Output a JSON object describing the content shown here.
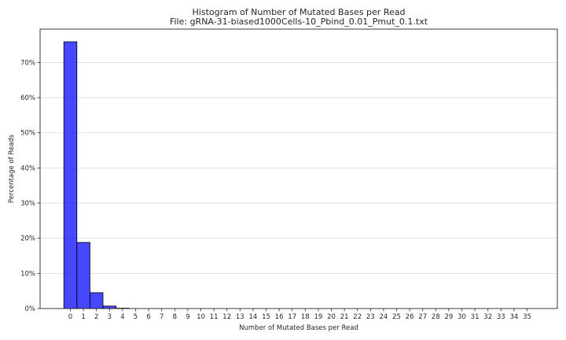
{
  "chart_data": {
    "type": "bar",
    "title": "Histogram of Number of Mutated Bases per Read",
    "subtitle": "File: gRNA-31-biased1000Cells-10_Pbind_0.01_Pmut_0.1.txt",
    "xlabel": "Number of Mutated Bases per Read",
    "ylabel": "Percentage of Reads",
    "categories": [
      "0",
      "1",
      "2",
      "3",
      "4",
      "5",
      "6",
      "7",
      "8",
      "9",
      "10",
      "11",
      "12",
      "13",
      "14",
      "15",
      "16",
      "17",
      "18",
      "19",
      "20",
      "21",
      "22",
      "23",
      "24",
      "25",
      "26",
      "27",
      "28",
      "29",
      "30",
      "31",
      "32",
      "33",
      "34",
      "35"
    ],
    "values": [
      75.9,
      18.8,
      4.5,
      0.7,
      0.1,
      0,
      0,
      0,
      0,
      0,
      0,
      0,
      0,
      0,
      0,
      0,
      0,
      0,
      0,
      0,
      0,
      0,
      0,
      0,
      0,
      0,
      0,
      0,
      0,
      0,
      0,
      0,
      0,
      0,
      0,
      0
    ],
    "ylim": [
      0,
      79.5
    ],
    "yticks": [
      0,
      10,
      20,
      30,
      40,
      50,
      60,
      70
    ],
    "ytick_labels": [
      "0%",
      "10%",
      "20%",
      "30%",
      "40%",
      "50%",
      "60%",
      "70%"
    ],
    "grid": "horizontal",
    "bar_color": "#0000ff",
    "edge_color": "#000000"
  }
}
